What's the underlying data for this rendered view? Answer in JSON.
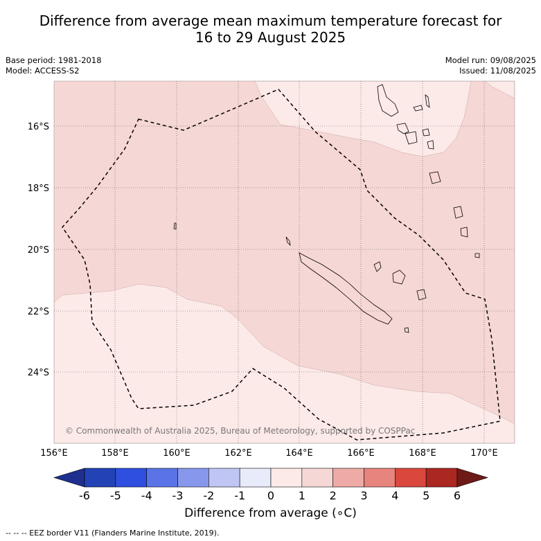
{
  "title": {
    "line1": "Difference from average mean maximum temperature forecast for",
    "line2": "16 to 29 August 2025"
  },
  "meta": {
    "base_period": "Base period: 1981-2018",
    "model": "Model: ACCESS-S2",
    "model_run": "Model run: 09/08/2025",
    "issued": "Issued: 11/08/2025"
  },
  "map": {
    "lon_ticks": [
      "156°E",
      "158°E",
      "160°E",
      "162°E",
      "164°E",
      "166°E",
      "168°E",
      "170°E"
    ],
    "lat_ticks": [
      "16°S",
      "18°S",
      "20°S",
      "22°S",
      "24°S"
    ],
    "copyright": "© Commonwealth of Australia 2025, Bureau of Meteorology, supported by COSPPac",
    "colors": {
      "zero_to_one": "#fceae8",
      "one_to_two": "#f5d7d5",
      "eez_border": "#000000"
    }
  },
  "colorbar": {
    "ticks": [
      "-6",
      "-5",
      "-4",
      "-3",
      "-2",
      "-1",
      "0",
      "1",
      "2",
      "3",
      "4",
      "5",
      "6"
    ],
    "colors": [
      "#1f2f8f",
      "#2342b5",
      "#2f4fe0",
      "#5a73e6",
      "#8797ec",
      "#bfc6f3",
      "#e8ebfa",
      "#fceae8",
      "#f5d7d5",
      "#eeaaa6",
      "#e6847d",
      "#d9473d",
      "#ab2722",
      "#6e1a16"
    ],
    "label": "Difference from average (∘C)"
  },
  "footer": "-- -- -- EEZ border V11 (Flanders Marine Institute, 2019)."
}
